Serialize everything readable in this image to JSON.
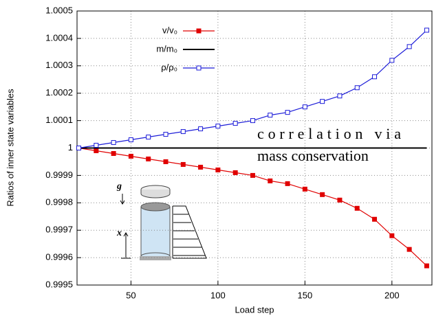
{
  "chart_data": {
    "type": "line",
    "x_label": "Load step",
    "y_label": "Ratios of inner state variables",
    "x": [
      20,
      30,
      40,
      50,
      60,
      70,
      80,
      90,
      100,
      110,
      120,
      130,
      140,
      150,
      160,
      170,
      180,
      190,
      200,
      210,
      220
    ],
    "series": [
      {
        "name": "v/v₀",
        "color": "#e00000",
        "marker": "filled-square",
        "values": [
          1.0,
          0.99999,
          0.99998,
          0.99997,
          0.99996,
          0.99995,
          0.99994,
          0.99993,
          0.99992,
          0.99991,
          0.9999,
          0.99988,
          0.99987,
          0.99985,
          0.99983,
          0.99981,
          0.99978,
          0.99974,
          0.99968,
          0.99963,
          0.99957
        ]
      },
      {
        "name": "m/m₀",
        "color": "#000000",
        "marker": "none",
        "values": [
          1,
          1,
          1,
          1,
          1,
          1,
          1,
          1,
          1,
          1,
          1,
          1,
          1,
          1,
          1,
          1,
          1,
          1,
          1,
          1,
          1
        ]
      },
      {
        "name": "ρ/ρ₀",
        "color": "#1a1ad8",
        "marker": "open-square",
        "values": [
          1.0,
          1.00001,
          1.00002,
          1.00003,
          1.00004,
          1.00005,
          1.00006,
          1.00007,
          1.00008,
          1.00009,
          1.0001,
          1.00012,
          1.00013,
          1.00015,
          1.00017,
          1.00019,
          1.00022,
          1.00026,
          1.00032,
          1.00037,
          1.00043
        ]
      }
    ],
    "xlim": [
      19,
      223
    ],
    "xticks": [
      50,
      100,
      150,
      200
    ],
    "ylim": [
      0.9995,
      1.0005
    ],
    "yticks": [
      0.9995,
      0.9996,
      0.9997,
      0.9998,
      0.9999,
      1,
      1.0001,
      1.0002,
      1.0003,
      1.0004,
      1.0005
    ],
    "grid": true,
    "legend": "top-center",
    "annotations": [
      "correlation via",
      "mass conservation"
    ],
    "inset_labels": [
      "g",
      "x"
    ]
  }
}
